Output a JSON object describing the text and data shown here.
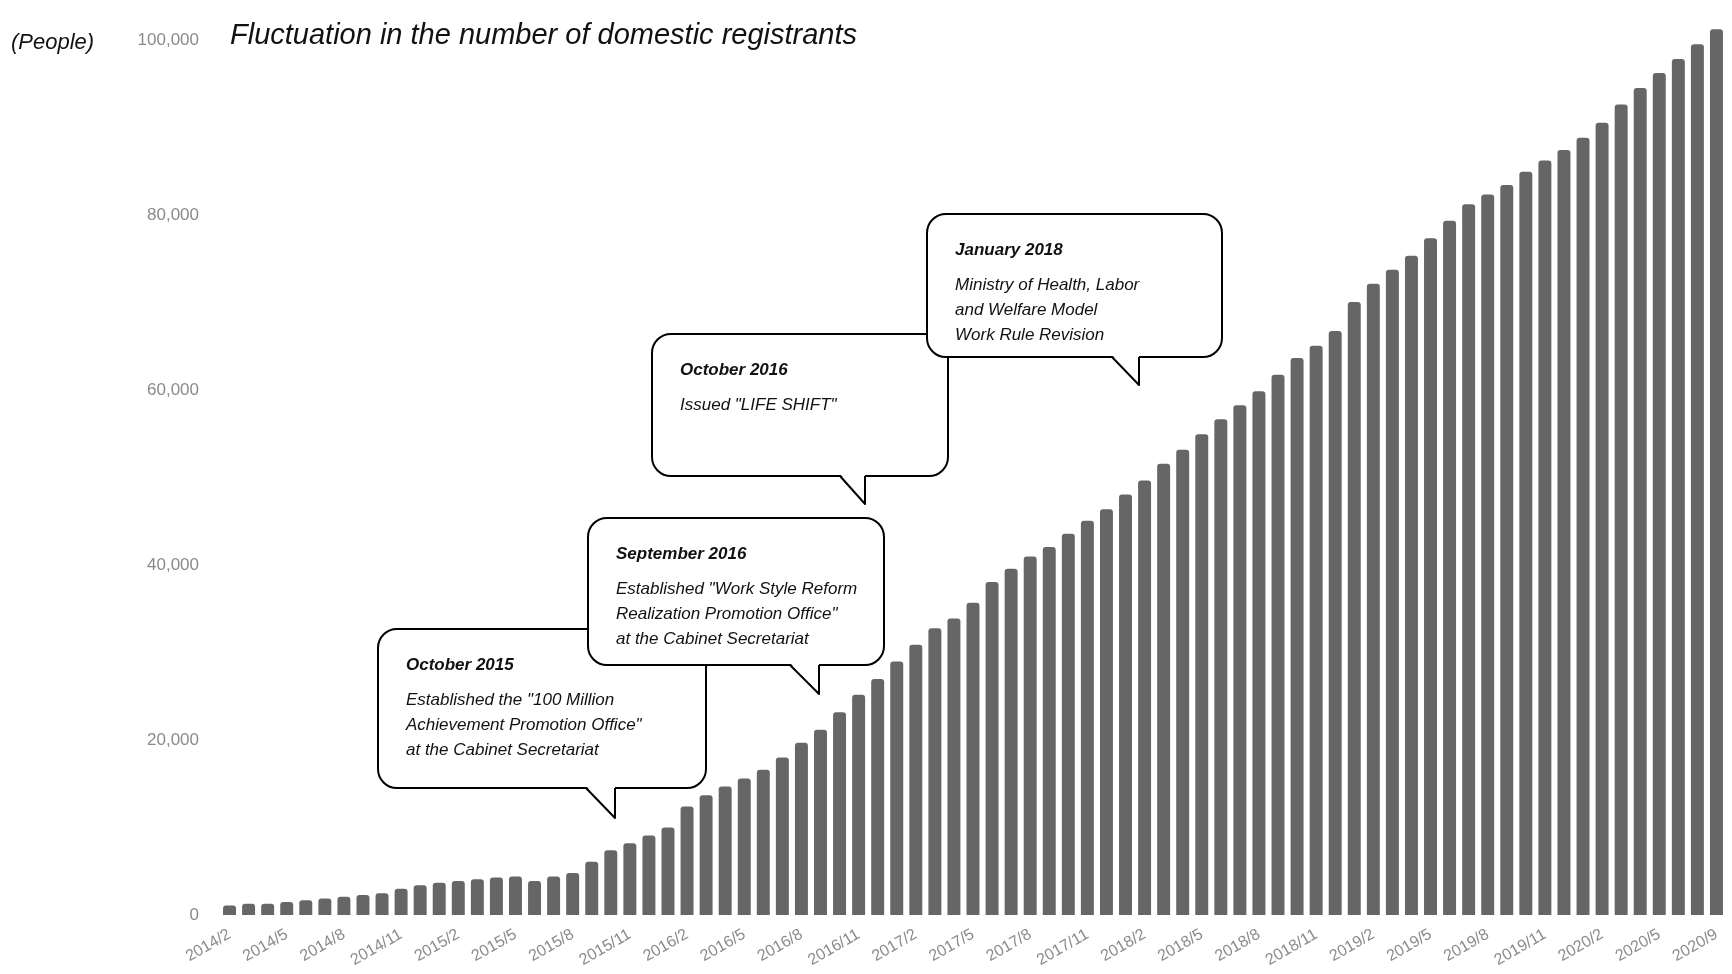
{
  "chart_data": {
    "type": "bar",
    "title": "Fluctuation in the number of domestic registrants",
    "ylabel": "(People)",
    "categories": [
      "2014/2",
      null,
      null,
      "2014/5",
      null,
      null,
      "2014/8",
      null,
      null,
      "2014/11",
      null,
      null,
      "2015/2",
      null,
      null,
      "2015/5",
      null,
      null,
      "2015/8",
      null,
      null,
      "2015/11",
      null,
      null,
      "2016/2",
      null,
      null,
      "2016/5",
      null,
      null,
      "2016/8",
      null,
      null,
      "2016/11",
      null,
      null,
      "2017/2",
      null,
      null,
      "2017/5",
      null,
      null,
      "2017/8",
      null,
      null,
      "2017/11",
      null,
      null,
      "2018/2",
      null,
      null,
      "2018/5",
      null,
      null,
      "2018/8",
      null,
      null,
      "2018/11",
      null,
      null,
      "2019/2",
      null,
      null,
      "2019/5",
      null,
      null,
      "2019/8",
      null,
      null,
      "2019/11",
      null,
      null,
      "2020/2",
      null,
      null,
      "2020/5",
      null,
      null,
      "2020/9"
    ],
    "values": [
      1100,
      1300,
      1300,
      1500,
      1700,
      1900,
      2100,
      2300,
      2500,
      3000,
      3400,
      3700,
      3900,
      4100,
      4300,
      4400,
      3900,
      4400,
      4800,
      6100,
      7400,
      8200,
      9100,
      10000,
      12400,
      13700,
      14700,
      15600,
      16600,
      18000,
      19700,
      21200,
      23200,
      25200,
      27000,
      29000,
      30900,
      32800,
      33900,
      35700,
      38100,
      39600,
      41000,
      42100,
      43600,
      45100,
      46400,
      48100,
      49700,
      51600,
      53200,
      55000,
      56700,
      58300,
      59900,
      61800,
      63700,
      65100,
      66800,
      70100,
      72200,
      73800,
      75400,
      77400,
      79400,
      81300,
      82400,
      83500,
      85000,
      86300,
      87500,
      88900,
      90600,
      92700,
      94600,
      96300,
      97900,
      99600,
      101300
    ],
    "color": "#666666",
    "ylim": [
      0,
      102000
    ],
    "yticks": [
      0,
      {
        "value": 20000,
        "label": "20,000"
      },
      {
        "value": 40000,
        "label": "40,000"
      },
      {
        "value": 60000,
        "label": "60,000"
      },
      {
        "value": 80000,
        "label": "80,000"
      },
      {
        "value": 100000,
        "label": "100,000"
      }
    ],
    "annotations": [
      "October 2015\nEstablished the \"100 Million\nAchievement Promotion Office\"\nat the Cabinet Secretariat",
      "September 2016\nEstablished \"Work Style Reform\nRealization Promotion Office\"\nat the Cabinet Secretariat",
      "October 2016\nIssued \"LIFE SHIFT\"",
      "January 2018\nMinistry of Health, Labor\nand Welfare Model\nWork Rule Revision"
    ]
  }
}
